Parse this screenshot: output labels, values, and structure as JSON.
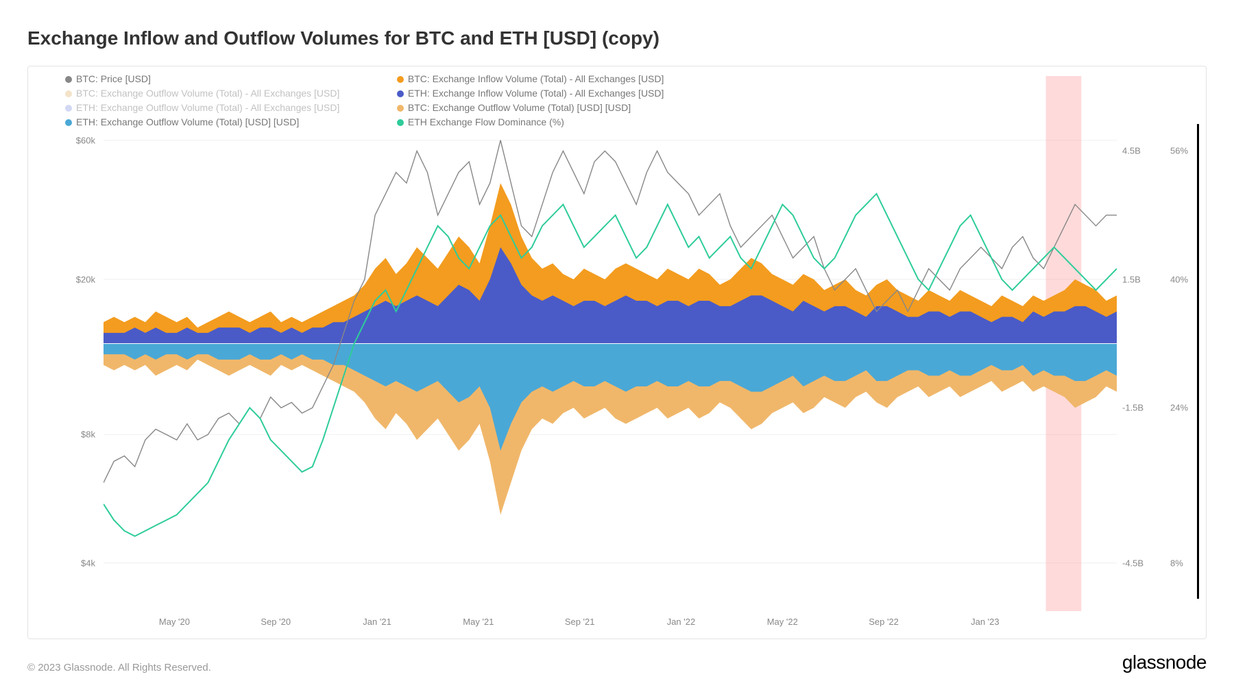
{
  "title": "Exchange Inflow and Outflow Volumes for BTC and ETH [USD] (copy)",
  "copyright": "© 2023 Glassnode. All Rights Reserved.",
  "brand": "glassnode",
  "chart": {
    "type": "multi-axis-area-line",
    "background_color": "#ffffff",
    "border_color": "#e3e3e3",
    "grid_color": "#efefef",
    "title_fontsize": 28,
    "label_fontsize": 13,
    "legend_fontsize": 14,
    "x_axis": {
      "labels": [
        "May '20",
        "Sep '20",
        "Jan '21",
        "May '21",
        "Sep '21",
        "Jan '22",
        "May '22",
        "Sep '22",
        "Jan '23"
      ],
      "positions_pct": [
        7,
        17,
        27,
        37,
        47,
        57,
        67,
        77,
        87
      ]
    },
    "y_left": {
      "scale": "log",
      "ticks": [
        {
          "label": "$60k",
          "pos_pct": 12
        },
        {
          "label": "$20k",
          "pos_pct": 38
        },
        {
          "label": "$8k",
          "pos_pct": 67
        },
        {
          "label": "$4k",
          "pos_pct": 91
        }
      ],
      "color": "#888888"
    },
    "y_right1": {
      "ticks": [
        {
          "label": "4.5B",
          "pos_pct": 14
        },
        {
          "label": "1.5B",
          "pos_pct": 38
        },
        {
          "label": "-1.5B",
          "pos_pct": 62
        },
        {
          "label": "-4.5B",
          "pos_pct": 91
        }
      ],
      "color": "#888888"
    },
    "y_right2": {
      "ticks": [
        {
          "label": "56%",
          "pos_pct": 14
        },
        {
          "label": "40%",
          "pos_pct": 38
        },
        {
          "label": "24%",
          "pos_pct": 62
        },
        {
          "label": "8%",
          "pos_pct": 91
        }
      ],
      "color": "#888888"
    },
    "highlight_band": {
      "x_start_pct": 93,
      "x_end_pct": 96.5,
      "color": "rgba(255,150,150,0.35)"
    },
    "right_black_bar": {
      "top_pct": 10,
      "bottom_pct": 93
    },
    "legend_items": [
      {
        "col": "left",
        "label": "BTC: Price [USD]",
        "color": "#878787"
      },
      {
        "col": "left",
        "label": "BTC: Exchange Outflow Volume (Total) - All Exchanges [USD]",
        "color": "#d8a24aaa",
        "dim": true
      },
      {
        "col": "left",
        "label": "ETH: Exchange Outflow Volume (Total) - All Exchanges [USD]",
        "color": "#6b7fd8aa",
        "dim": true
      },
      {
        "col": "left",
        "label": "ETH: Exchange Outflow Volume (Total) [USD] [USD]",
        "color": "#4aa8d6"
      },
      {
        "col": "right",
        "label": "BTC: Exchange Inflow Volume (Total) - All Exchanges [USD]",
        "color": "#f39c1f"
      },
      {
        "col": "right",
        "label": "ETH: Exchange Inflow Volume (Total) - All Exchanges [USD]",
        "color": "#4a5bc7"
      },
      {
        "col": "right",
        "label": "BTC: Exchange Outflow Volume (Total) [USD] [USD]",
        "color": "#f0b76a"
      },
      {
        "col": "right",
        "label": "ETH Exchange Flow Dominance (%)",
        "color": "#2ecc9a"
      }
    ],
    "series": {
      "midline_pct": 50,
      "btc_inflow": {
        "color": "#f39c1f",
        "values_pct": [
          4,
          5,
          4,
          5,
          4,
          6,
          5,
          4,
          5,
          3,
          4,
          5,
          6,
          5,
          4,
          5,
          6,
          4,
          5,
          4,
          5,
          6,
          7,
          8,
          9,
          11,
          14,
          16,
          13,
          15,
          18,
          16,
          14,
          17,
          20,
          18,
          15,
          22,
          30,
          26,
          20,
          16,
          14,
          15,
          13,
          12,
          14,
          13,
          12,
          14,
          15,
          14,
          13,
          12,
          14,
          13,
          12,
          14,
          13,
          11,
          12,
          14,
          16,
          15,
          13,
          12,
          11,
          13,
          12,
          10,
          11,
          12,
          10,
          9,
          11,
          12,
          10,
          9,
          8,
          10,
          9,
          8,
          10,
          9,
          8,
          7,
          9,
          8,
          7,
          9,
          8,
          9,
          10,
          12,
          11,
          10,
          8,
          9
        ]
      },
      "eth_inflow": {
        "color": "#4a5bc7",
        "values_pct": [
          2,
          2,
          2,
          3,
          2,
          3,
          2,
          2,
          3,
          2,
          2,
          3,
          3,
          3,
          2,
          3,
          3,
          2,
          3,
          2,
          3,
          3,
          4,
          4,
          5,
          6,
          7,
          8,
          7,
          8,
          9,
          8,
          7,
          9,
          11,
          10,
          8,
          12,
          18,
          15,
          11,
          9,
          8,
          9,
          8,
          7,
          8,
          8,
          7,
          8,
          9,
          8,
          8,
          7,
          8,
          8,
          7,
          8,
          8,
          7,
          7,
          8,
          9,
          9,
          8,
          7,
          6,
          8,
          7,
          6,
          7,
          7,
          6,
          5,
          7,
          7,
          6,
          5,
          5,
          6,
          6,
          5,
          6,
          6,
          5,
          4,
          5,
          5,
          4,
          6,
          5,
          6,
          6,
          7,
          7,
          6,
          5,
          6
        ]
      },
      "btc_outflow": {
        "color": "#f0b76a",
        "values_pct": [
          4,
          5,
          4,
          5,
          4,
          6,
          5,
          4,
          5,
          3,
          4,
          5,
          6,
          5,
          4,
          5,
          6,
          4,
          5,
          4,
          5,
          6,
          7,
          8,
          9,
          11,
          14,
          16,
          13,
          15,
          18,
          16,
          14,
          17,
          20,
          18,
          15,
          22,
          32,
          26,
          20,
          16,
          14,
          15,
          13,
          12,
          14,
          13,
          12,
          14,
          15,
          14,
          13,
          12,
          14,
          13,
          12,
          14,
          13,
          11,
          12,
          14,
          16,
          15,
          13,
          12,
          11,
          13,
          12,
          10,
          11,
          12,
          10,
          9,
          11,
          12,
          10,
          9,
          8,
          10,
          9,
          8,
          10,
          9,
          8,
          7,
          9,
          8,
          7,
          9,
          8,
          9,
          10,
          12,
          11,
          10,
          8,
          9
        ]
      },
      "eth_outflow": {
        "color": "#4aa8d6",
        "values_pct": [
          2,
          2,
          2,
          3,
          2,
          3,
          2,
          2,
          3,
          2,
          2,
          3,
          3,
          3,
          2,
          3,
          3,
          2,
          3,
          2,
          3,
          3,
          4,
          4,
          5,
          6,
          7,
          8,
          7,
          8,
          9,
          8,
          7,
          9,
          11,
          10,
          8,
          12,
          20,
          15,
          11,
          9,
          8,
          9,
          8,
          7,
          8,
          8,
          7,
          8,
          9,
          8,
          8,
          7,
          8,
          8,
          7,
          8,
          8,
          7,
          7,
          8,
          9,
          9,
          8,
          7,
          6,
          8,
          7,
          6,
          7,
          7,
          6,
          5,
          7,
          7,
          6,
          5,
          5,
          6,
          6,
          5,
          6,
          6,
          5,
          4,
          5,
          5,
          4,
          6,
          5,
          6,
          6,
          7,
          7,
          6,
          5,
          6
        ]
      },
      "btc_price": {
        "color": "#878787",
        "stroke_width": 1.4,
        "y_pct": [
          76,
          72,
          71,
          73,
          68,
          66,
          67,
          68,
          65,
          68,
          67,
          64,
          63,
          65,
          62,
          64,
          60,
          62,
          61,
          63,
          62,
          58,
          54,
          48,
          42,
          38,
          26,
          22,
          18,
          20,
          14,
          18,
          26,
          22,
          18,
          16,
          24,
          20,
          12,
          20,
          28,
          30,
          24,
          18,
          14,
          18,
          22,
          16,
          14,
          16,
          20,
          24,
          18,
          14,
          18,
          20,
          22,
          26,
          24,
          22,
          28,
          32,
          30,
          28,
          26,
          30,
          34,
          32,
          30,
          36,
          40,
          38,
          36,
          40,
          44,
          42,
          40,
          44,
          40,
          36,
          38,
          40,
          36,
          34,
          32,
          34,
          36,
          32,
          30,
          34,
          36,
          32,
          28,
          24,
          26,
          28,
          26,
          26
        ]
      },
      "eth_dominance": {
        "color": "#2ecc9a",
        "stroke_width": 2.0,
        "y_pct": [
          80,
          83,
          85,
          86,
          85,
          84,
          83,
          82,
          80,
          78,
          76,
          72,
          68,
          65,
          62,
          64,
          68,
          70,
          72,
          74,
          73,
          68,
          62,
          56,
          50,
          46,
          42,
          40,
          44,
          40,
          36,
          32,
          28,
          30,
          34,
          36,
          32,
          28,
          26,
          30,
          34,
          32,
          28,
          26,
          24,
          28,
          32,
          30,
          28,
          26,
          30,
          34,
          32,
          28,
          24,
          28,
          32,
          30,
          34,
          32,
          30,
          34,
          36,
          32,
          28,
          24,
          26,
          30,
          34,
          36,
          34,
          30,
          26,
          24,
          22,
          26,
          30,
          34,
          38,
          40,
          36,
          32,
          28,
          26,
          30,
          34,
          38,
          40,
          38,
          36,
          34,
          32,
          34,
          36,
          38,
          40,
          38,
          36
        ]
      }
    }
  }
}
